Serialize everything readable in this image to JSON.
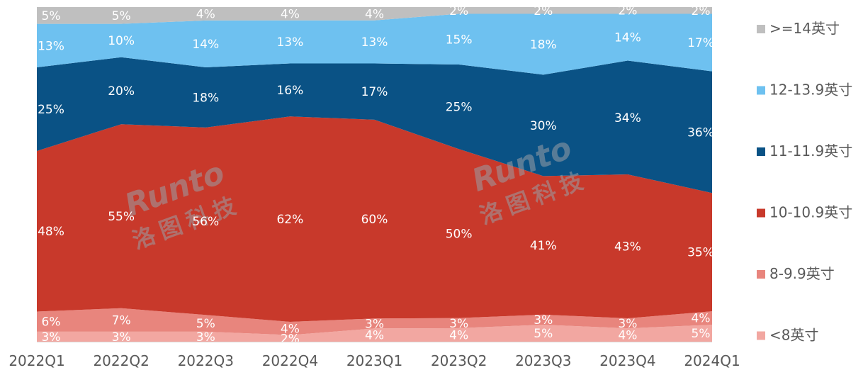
{
  "chart_data": {
    "type": "area",
    "stacked": "percent",
    "categories": [
      "2022Q1",
      "2022Q2",
      "2022Q3",
      "2022Q4",
      "2023Q1",
      "2023Q2",
      "2023Q3",
      "2023Q4",
      "2024Q1"
    ],
    "ylim": [
      0,
      100
    ],
    "grid": false,
    "legend_position": "right",
    "series": [
      {
        "name": "<8英寸",
        "color": "#F2A7A1",
        "values": [
          3,
          3,
          3,
          2,
          4,
          4,
          5,
          4,
          5
        ],
        "labels": [
          "3%",
          "3%",
          "3%",
          "2%",
          "4%",
          "4%",
          "5%",
          "4%",
          "5%"
        ],
        "label_color": "#ffffff"
      },
      {
        "name": "8-9.9英寸",
        "color": "#E8857D",
        "values": [
          6,
          7,
          5,
          4,
          3,
          3,
          3,
          3,
          4
        ],
        "labels": [
          "6%",
          "7%",
          "5%",
          "4%",
          "3%",
          "3%",
          "3%",
          "3%",
          "4%"
        ],
        "label_color": "#ffffff"
      },
      {
        "name": "10-10.9英寸",
        "color": "#C8392B",
        "values": [
          48,
          55,
          56,
          62,
          60,
          50,
          41,
          43,
          35
        ],
        "labels": [
          "48%",
          "55%",
          "56%",
          "62%",
          "60%",
          "50%",
          "41%",
          "43%",
          "35%"
        ],
        "label_color": "#ffffff"
      },
      {
        "name": "11-11.9英寸",
        "color": "#0A5285",
        "values": [
          25,
          20,
          18,
          16,
          17,
          25,
          30,
          34,
          36
        ],
        "labels": [
          "25%",
          "20%",
          "18%",
          "16%",
          "17%",
          "25%",
          "30%",
          "34%",
          "36%"
        ],
        "label_color": "#ffffff"
      },
      {
        "name": "12-13.9英寸",
        "color": "#6EC1F0",
        "values": [
          13,
          10,
          14,
          13,
          13,
          15,
          18,
          14,
          17
        ],
        "labels": [
          "13%",
          "10%",
          "14%",
          "13%",
          "13%",
          "15%",
          "18%",
          "14%",
          "17%"
        ],
        "label_color": "#ffffff"
      },
      {
        "name": ">=14英寸",
        "color": "#BFBFBF",
        "values": [
          5,
          5,
          4,
          4,
          4,
          2,
          2,
          2,
          2
        ],
        "labels": [
          "5%",
          "5%",
          "4%",
          "4%",
          "4%",
          "2%",
          "2%",
          "2%",
          "2%"
        ],
        "label_color": "#ffffff"
      }
    ]
  },
  "watermark": {
    "brand": "Runto",
    "chinese": "洛图科技",
    "color": "#9AA0A6"
  }
}
